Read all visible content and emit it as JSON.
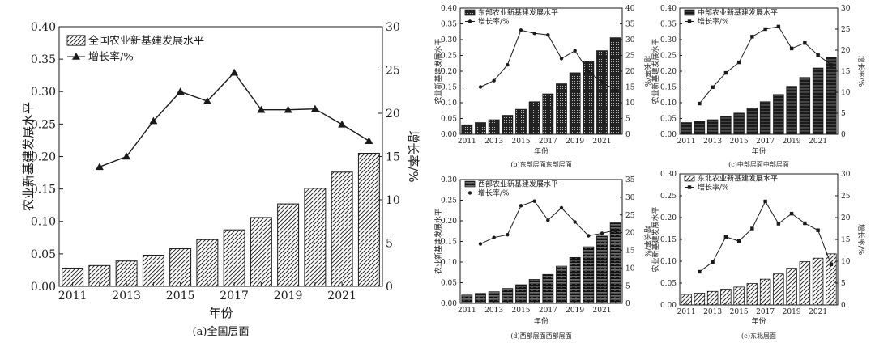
{
  "chart_data": [
    {
      "id": "a",
      "type": "bar+line",
      "caption": "(a)全国层面",
      "xlabel": "年份",
      "ylabel": "农业新基建发展水平",
      "y2label": "增长率/%",
      "x_tick_labels": [
        "2011",
        "2013",
        "2015",
        "2017",
        "2019",
        "2021"
      ],
      "ylim": [
        0,
        0.4
      ],
      "y_ticks": [
        "0.00",
        "0.05",
        "0.10",
        "0.15",
        "0.20",
        "0.25",
        "0.30",
        "0.35",
        "0.40"
      ],
      "y2lim": [
        0,
        30
      ],
      "y2_ticks": [
        "0",
        "5",
        "10",
        "15",
        "20",
        "25",
        "30"
      ],
      "legend_placement": "top-left",
      "legend": [
        "全国农业新基建发展水平",
        "增长率/%"
      ],
      "categories": [
        2011,
        2012,
        2013,
        2014,
        2015,
        2016,
        2017,
        2018,
        2019,
        2020,
        2021,
        2022
      ],
      "bars": [
        0.028,
        0.032,
        0.039,
        0.048,
        0.058,
        0.072,
        0.087,
        0.106,
        0.127,
        0.151,
        0.176,
        0.205
      ],
      "growth": [
        null,
        13.8,
        15.0,
        19.1,
        22.5,
        21.4,
        24.7,
        20.4,
        20.4,
        20.5,
        18.7,
        16.8
      ],
      "bar_pattern": "diagonal"
    },
    {
      "id": "b",
      "type": "bar+line",
      "caption": "(b)东部层面东部层面",
      "xlabel": "年份",
      "ylabel": "农业新基建发展水平",
      "y2label": "增长率/%",
      "x_tick_labels": [
        "2011",
        "2013",
        "2015",
        "2017",
        "2019",
        "2021"
      ],
      "ylim": [
        0,
        0.4
      ],
      "y_ticks": [
        "0.00",
        "0.05",
        "0.10",
        "0.15",
        "0.20",
        "0.25",
        "0.30",
        "0.35",
        "0.40"
      ],
      "y2lim": [
        0,
        40
      ],
      "y2_ticks": [
        "0",
        "5",
        "10",
        "15",
        "20",
        "25",
        "30",
        "35",
        "40"
      ],
      "legend_placement": "top-left",
      "legend": [
        "东部农业新基建发展水平",
        "增长率/%"
      ],
      "categories": [
        2011,
        2012,
        2013,
        2014,
        2015,
        2016,
        2017,
        2018,
        2019,
        2020,
        2021,
        2022
      ],
      "bars": [
        0.03,
        0.037,
        0.046,
        0.06,
        0.079,
        0.103,
        0.128,
        0.16,
        0.195,
        0.23,
        0.265,
        0.306
      ],
      "growth": [
        null,
        15.0,
        17.0,
        22.0,
        33.0,
        32.0,
        31.5,
        24.0,
        26.5,
        20.0,
        16.5,
        14.0
      ],
      "bar_pattern": "dots"
    },
    {
      "id": "c",
      "type": "bar+line",
      "caption": "(c)中部层面中部层面",
      "xlabel": "年份",
      "ylabel": "农业新基建发展水平",
      "y2label": "增长率/%",
      "x_tick_labels": [
        "2011",
        "2013",
        "2015",
        "2017",
        "2019",
        "2021"
      ],
      "ylim": [
        0,
        0.4
      ],
      "y_ticks": [
        "0.00",
        "0.05",
        "0.10",
        "0.15",
        "0.20",
        "0.25",
        "0.30",
        "0.35",
        "0.40"
      ],
      "y2lim": [
        0,
        30
      ],
      "y2_ticks": [
        "0",
        "5",
        "10",
        "15",
        "20",
        "25",
        "30"
      ],
      "legend_placement": "top-left",
      "legend": [
        "中部农业新基建发展水平",
        "增长率/%"
      ],
      "categories": [
        2011,
        2012,
        2013,
        2014,
        2015,
        2016,
        2017,
        2018,
        2019,
        2020,
        2021,
        2022
      ],
      "bars": [
        0.037,
        0.04,
        0.046,
        0.056,
        0.067,
        0.083,
        0.103,
        0.126,
        0.152,
        0.18,
        0.21,
        0.245
      ],
      "growth": [
        null,
        7.3,
        11.2,
        14.6,
        17.1,
        23.2,
        25.0,
        25.6,
        20.4,
        21.7,
        18.8,
        16.5
      ],
      "bar_pattern": "dense"
    },
    {
      "id": "d",
      "type": "bar+line",
      "caption": "(d)西部层面西部层面",
      "xlabel": "年份",
      "ylabel": "农业新基建发展水平",
      "y2label": "增长率/%",
      "x_tick_labels": [
        "2011",
        "2013",
        "2015",
        "2017",
        "2019",
        "2021"
      ],
      "ylim": [
        0,
        0.3
      ],
      "y_ticks": [
        "0.00",
        "0.05",
        "0.10",
        "0.15",
        "0.20",
        "0.25",
        "0.30"
      ],
      "y2lim": [
        0,
        35
      ],
      "y2_ticks": [
        "0",
        "5",
        "10",
        "15",
        "20",
        "25",
        "30",
        "35"
      ],
      "legend_placement": "top-left",
      "legend": [
        "西部农业新基建发展水平",
        "增长率/%"
      ],
      "categories": [
        2011,
        2012,
        2013,
        2014,
        2015,
        2016,
        2017,
        2018,
        2019,
        2020,
        2021,
        2022
      ],
      "bars": [
        0.02,
        0.024,
        0.028,
        0.036,
        0.045,
        0.058,
        0.07,
        0.09,
        0.111,
        0.137,
        0.163,
        0.195
      ],
      "growth": [
        null,
        16.8,
        18.6,
        19.4,
        27.6,
        28.9,
        23.5,
        27.0,
        23.0,
        19.1,
        19.8,
        20.7
      ],
      "bar_pattern": "hlines"
    },
    {
      "id": "e",
      "type": "bar+line",
      "caption": "(e)东北层面",
      "xlabel": "年份",
      "ylabel": "农业新基建发展水平",
      "y2label": "增长率/%",
      "x_tick_labels": [
        "2011",
        "2013",
        "2015",
        "2017",
        "2019",
        "2021"
      ],
      "ylim": [
        0,
        0.3
      ],
      "y_ticks": [
        "0.00",
        "0.05",
        "0.10",
        "0.15",
        "0.20",
        "0.25",
        "0.30"
      ],
      "y2lim": [
        0,
        30
      ],
      "y2_ticks": [
        "0",
        "5",
        "10",
        "15",
        "20",
        "25",
        "30"
      ],
      "legend_placement": "top-left",
      "legend": [
        "东北农业新基建发展水平",
        "增长率/%"
      ],
      "categories": [
        2011,
        2012,
        2013,
        2014,
        2015,
        2016,
        2017,
        2018,
        2019,
        2020,
        2021,
        2022
      ],
      "bars": [
        0.024,
        0.027,
        0.031,
        0.036,
        0.041,
        0.049,
        0.059,
        0.071,
        0.084,
        0.099,
        0.107,
        0.117
      ],
      "growth": [
        null,
        7.6,
        9.8,
        15.6,
        14.6,
        17.5,
        23.7,
        18.6,
        20.9,
        18.7,
        17.1,
        9.3
      ],
      "bar_pattern": "diagonal"
    }
  ]
}
